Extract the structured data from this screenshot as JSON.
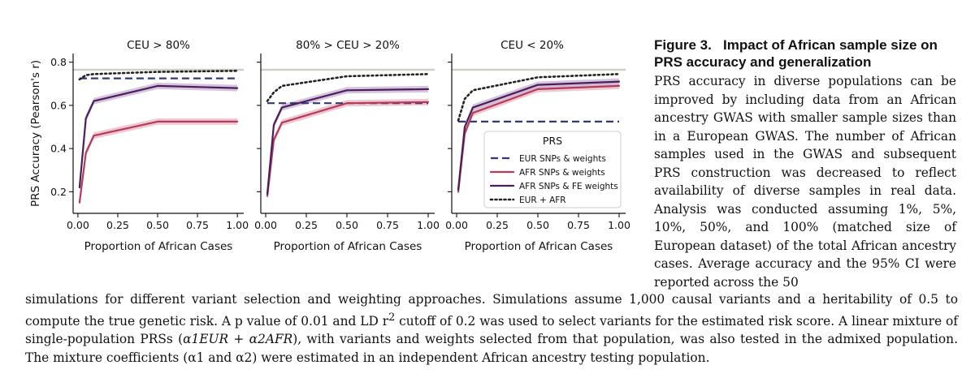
{
  "chart_data": [
    {
      "type": "line",
      "title": "CEU > 80%",
      "xlabel": "Proportion of African Cases",
      "ylabel": "PRS Accuracy (Pearson's r)",
      "x": [
        0.01,
        0.05,
        0.1,
        0.5,
        1.0
      ],
      "xlim": [
        -0.03,
        1.04
      ],
      "ylim": [
        0.1,
        0.84
      ],
      "xticks": [
        "0.00",
        "0.25",
        "0.50",
        "0.75",
        "1.00"
      ],
      "yticks": [
        "0.2",
        "0.4",
        "0.6",
        "0.8"
      ],
      "reference_line": 0.765,
      "series": [
        {
          "name": "EUR SNPs & weights",
          "values": [
            0.725,
            0.725,
            0.725,
            0.725,
            0.725
          ]
        },
        {
          "name": "AFR SNPs & weights",
          "values": [
            0.15,
            0.38,
            0.46,
            0.525,
            0.525
          ]
        },
        {
          "name": "AFR SNPs & FE weights",
          "values": [
            0.22,
            0.54,
            0.62,
            0.69,
            0.68
          ]
        },
        {
          "name": "EUR + AFR",
          "values": [
            0.72,
            0.74,
            0.745,
            0.755,
            0.76
          ]
        }
      ]
    },
    {
      "type": "line",
      "title": "80% > CEU > 20%",
      "xlabel": "Proportion of African Cases",
      "x": [
        0.01,
        0.05,
        0.1,
        0.5,
        1.0
      ],
      "xlim": [
        -0.03,
        1.04
      ],
      "ylim": [
        0.1,
        0.84
      ],
      "xticks": [
        "0.00",
        "0.25",
        "0.50",
        "0.75",
        "1.00"
      ],
      "reference_line": 0.765,
      "series": [
        {
          "name": "EUR SNPs & weights",
          "values": [
            0.61,
            0.61,
            0.61,
            0.61,
            0.61
          ]
        },
        {
          "name": "AFR SNPs & weights",
          "values": [
            0.18,
            0.44,
            0.52,
            0.61,
            0.615
          ]
        },
        {
          "name": "AFR SNPs & FE weights",
          "values": [
            0.19,
            0.51,
            0.59,
            0.67,
            0.675
          ]
        },
        {
          "name": "EUR + AFR",
          "values": [
            0.62,
            0.66,
            0.69,
            0.735,
            0.745
          ]
        }
      ]
    },
    {
      "type": "line",
      "title": "CEU < 20%",
      "xlabel": "Proportion of African Cases",
      "x": [
        0.01,
        0.05,
        0.1,
        0.5,
        1.0
      ],
      "xlim": [
        -0.03,
        1.04
      ],
      "ylim": [
        0.1,
        0.84
      ],
      "xticks": [
        "0.00",
        "0.25",
        "0.50",
        "0.75",
        "1.00"
      ],
      "reference_line": 0.765,
      "series": [
        {
          "name": "EUR SNPs & weights",
          "values": [
            0.525,
            0.525,
            0.525,
            0.525,
            0.525
          ]
        },
        {
          "name": "AFR SNPs & weights",
          "values": [
            0.2,
            0.47,
            0.565,
            0.675,
            0.69
          ]
        },
        {
          "name": "AFR SNPs & FE weights",
          "values": [
            0.21,
            0.5,
            0.59,
            0.695,
            0.71
          ]
        },
        {
          "name": "EUR + AFR",
          "values": [
            0.53,
            0.63,
            0.67,
            0.73,
            0.745
          ]
        }
      ]
    }
  ],
  "legend": {
    "title": "PRS",
    "position": "bottom-right of third panel",
    "entries": [
      "EUR SNPs & weights",
      "AFR SNPs & weights",
      "AFR SNPs & FE weights",
      "EUR + AFR"
    ]
  },
  "colors": {
    "eur": "#2e3a78",
    "afr": "#b53a5b",
    "afr_fe": "#4a1d5c",
    "eur_afr": "#222222",
    "ref": "#cfcfc6",
    "band_afr": "#e8b7c6",
    "band_fe": "#c9b2d2"
  },
  "caption": {
    "title": "Figure 3.   Impact of African sample size on PRS accuracy and generalization",
    "side_text": "PRS accuracy in diverse populations can be improved by including data from an African ancestry GWAS with smaller sample sizes than in a European GWAS. The number of African samples used in the GWAS and subsequent PRS construction was decreased to reflect availability of diverse samples in real data. Analysis was conducted assuming 1%, 5%, 10%, 50%, and 100% (matched size of European dataset) of the total African ancestry cases. Average accuracy and the 95% CI were reported across the 50",
    "bottom_1": "simulations for different variant selection and weighting approaches. Simulations assume 1,000 causal variants and a heritability of 0.5 to compute the true genetic risk. A p value of 0.01 and LD r",
    "bottom_sup": "2",
    "bottom_2": " cutoff of 0.2 was used to select variants for the estimated risk score. A linear mixture of single-population PRSs (",
    "bottom_formula": "α1EUR + α2AFR",
    "bottom_3": "), with variants and weights selected from that population, was also tested in the admixed population. The mixture coefficients (α1 and α2) were estimated in an independent African ancestry testing population."
  }
}
